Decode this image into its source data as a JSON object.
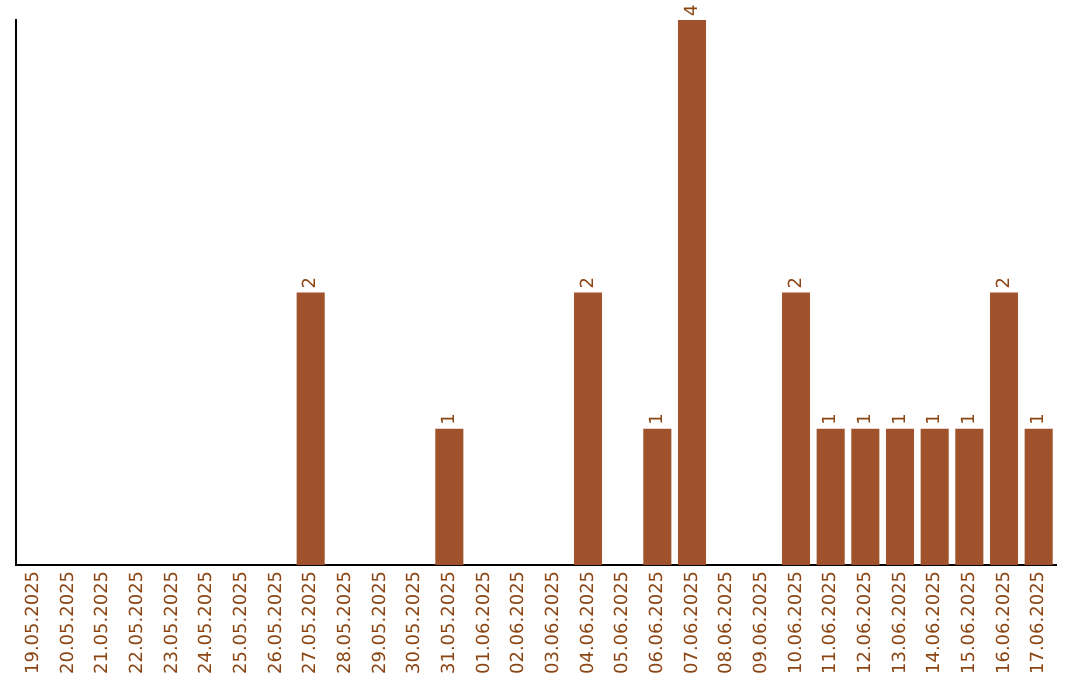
{
  "chart_data": {
    "type": "bar",
    "categories": [
      "19.05.2025",
      "20.05.2025",
      "21.05.2025",
      "22.05.2025",
      "23.05.2025",
      "24.05.2025",
      "25.05.2025",
      "26.05.2025",
      "27.05.2025",
      "28.05.2025",
      "29.05.2025",
      "30.05.2025",
      "31.05.2025",
      "01.06.2025",
      "02.06.2025",
      "03.06.2025",
      "04.06.2025",
      "05.06.2025",
      "06.06.2025",
      "07.06.2025",
      "08.06.2025",
      "09.06.2025",
      "10.06.2025",
      "11.06.2025",
      "12.06.2025",
      "13.06.2025",
      "14.06.2025",
      "15.06.2025",
      "16.06.2025",
      "17.06.2025"
    ],
    "values": [
      0,
      0,
      0,
      0,
      0,
      0,
      0,
      0,
      2,
      0,
      0,
      0,
      1,
      0,
      0,
      0,
      2,
      0,
      1,
      4,
      0,
      0,
      2,
      1,
      1,
      1,
      1,
      1,
      2,
      1
    ],
    "value_labels": [
      null,
      null,
      null,
      null,
      null,
      null,
      null,
      null,
      "2",
      null,
      null,
      null,
      "1",
      null,
      null,
      null,
      "2",
      null,
      "1",
      "4",
      null,
      null,
      "2",
      "1",
      "1",
      "1",
      "1",
      "1",
      "2",
      "1"
    ],
    "color": "#a0522d",
    "grid": false,
    "legend": false,
    "tick_labels": "x"
  }
}
